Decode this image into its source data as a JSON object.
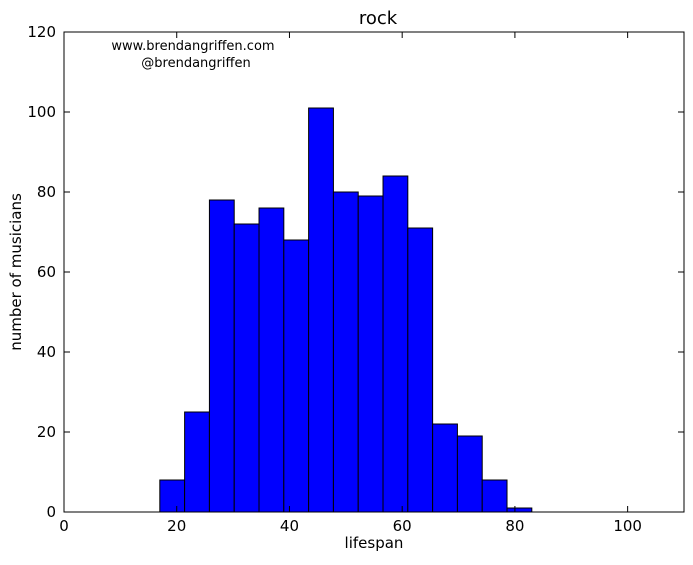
{
  "chart_data": {
    "type": "bar",
    "title": "rock",
    "xlabel": "lifespan",
    "ylabel": "number of musicians",
    "xlim": [
      0,
      110
    ],
    "ylim": [
      0,
      120
    ],
    "xticks": [
      0,
      20,
      40,
      60,
      80,
      100
    ],
    "yticks": [
      0,
      20,
      40,
      60,
      80,
      100,
      120
    ],
    "bin_edges": [
      17.0,
      21.4,
      25.8,
      30.2,
      34.6,
      39.0,
      43.4,
      47.8,
      52.2,
      56.6,
      61.0,
      65.4,
      69.8,
      74.2,
      78.6,
      83.0
    ],
    "values": [
      8,
      25,
      78,
      72,
      76,
      68,
      101,
      80,
      79,
      84,
      71,
      22,
      19,
      8,
      1
    ],
    "bar_color": "#0000ff",
    "edge_color": "#000000",
    "grid": false,
    "annotation": {
      "line1": "www.brendangriffen.com",
      "line2": "@brendangriffen"
    }
  }
}
